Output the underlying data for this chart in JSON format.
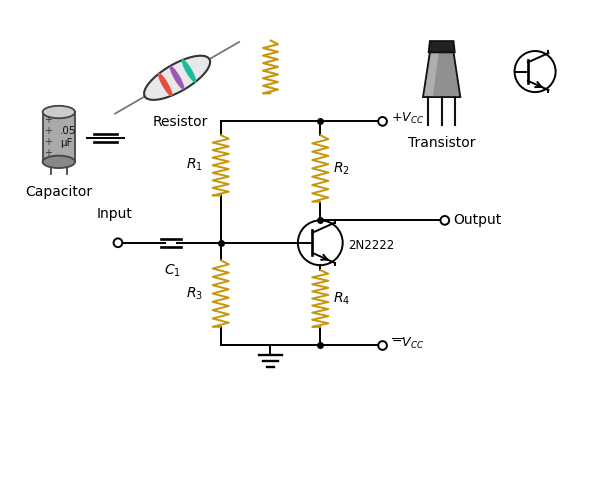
{
  "bg_color": "#ffffff",
  "wire_color": "#000000",
  "resistor_color": "#c8960c",
  "fig_width": 5.97,
  "fig_height": 4.98,
  "dpi": 100,
  "labels": {
    "R1": "$R_1$",
    "R2": "$R_2$",
    "R3": "$R_3$",
    "R4": "$R_4$",
    "C1": "$C_1$",
    "transistor_label": "2N2222",
    "input_label": "Input",
    "output_label": "Output",
    "vcc_pos": "$+V_{CC}$",
    "vcc_neg": "$\\bar{-}V_{CC}$",
    "resistor_text": "Resistor",
    "capacitor_text": "Capacitor",
    "transistor_text": "Transistor"
  },
  "colors": {
    "resistor_body": "#e8e8e8",
    "resistor_band1": "#e74c3c",
    "resistor_band2": "#9b59b6",
    "resistor_band3": "#1abc9c",
    "resistor_wire": "#777777",
    "cap_body": "#aaaaaa",
    "transistor_body": "#909090",
    "transistor_top": "#222222",
    "transistor_highlight": "#cccccc",
    "zigzag": "#c8960c"
  },
  "layout": {
    "xlim": [
      0,
      9.5
    ],
    "ylim": [
      0,
      7.5
    ]
  }
}
